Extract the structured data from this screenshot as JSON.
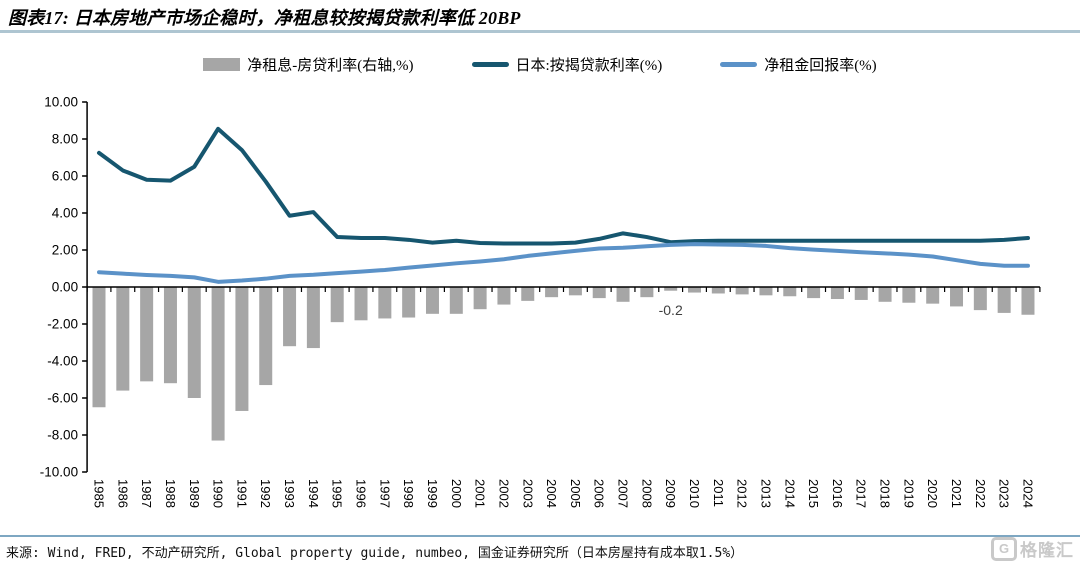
{
  "header": {
    "title": "图表17: 日本房地产市场企稳时，净租息较按揭贷款利率低 20BP"
  },
  "legend": [
    {
      "label": "净租息-房贷利率(右轴,%)",
      "type": "bar",
      "color": "#a6a6a6"
    },
    {
      "label": "日本:按揭贷款利率(%)",
      "type": "line",
      "color": "#16566f"
    },
    {
      "label": "净租金回报率(%)",
      "type": "line",
      "color": "#5b92c8"
    }
  ],
  "chart_data": {
    "type": "combo",
    "title": "",
    "xlabel": "",
    "ylabel": "",
    "ylim": [
      -10,
      10
    ],
    "grid": false,
    "legend_position": "top",
    "y_ticks": [
      "10.00",
      "8.00",
      "6.00",
      "4.00",
      "2.00",
      "0.00",
      "-2.00",
      "-4.00",
      "-6.00",
      "-8.00",
      "-10.00"
    ],
    "categories": [
      "1985",
      "1986",
      "1987",
      "1988",
      "1989",
      "1990",
      "1991",
      "1992",
      "1993",
      "1994",
      "1995",
      "1996",
      "1997",
      "1998",
      "1999",
      "2000",
      "2001",
      "2002",
      "2003",
      "2004",
      "2005",
      "2006",
      "2007",
      "2008",
      "2009",
      "2010",
      "2011",
      "2012",
      "2013",
      "2014",
      "2015",
      "2016",
      "2017",
      "2018",
      "2019",
      "2020",
      "2021",
      "2022",
      "2023",
      "2024"
    ],
    "series": [
      {
        "name": "净租息-房贷利率(右轴,%)",
        "type": "bar",
        "color": "#a6a6a6",
        "values": [
          -6.5,
          -5.6,
          -5.1,
          -5.2,
          -6.0,
          -8.3,
          -6.7,
          -5.3,
          -3.2,
          -3.3,
          -1.9,
          -1.8,
          -1.7,
          -1.65,
          -1.45,
          -1.45,
          -1.2,
          -0.95,
          -0.75,
          -0.55,
          -0.45,
          -0.6,
          -0.8,
          -0.55,
          -0.2,
          -0.3,
          -0.35,
          -0.4,
          -0.45,
          -0.5,
          -0.6,
          -0.65,
          -0.7,
          -0.8,
          -0.85,
          -0.9,
          -1.05,
          -1.25,
          -1.4,
          -1.5
        ]
      },
      {
        "name": "日本:按揭贷款利率(%)",
        "type": "line",
        "color": "#16566f",
        "values": [
          7.25,
          6.3,
          5.8,
          5.75,
          6.5,
          8.55,
          7.4,
          5.7,
          3.85,
          4.05,
          2.7,
          2.65,
          2.65,
          2.55,
          2.4,
          2.5,
          2.38,
          2.35,
          2.35,
          2.35,
          2.4,
          2.6,
          2.9,
          2.7,
          2.42,
          2.48,
          2.5,
          2.5,
          2.5,
          2.5,
          2.5,
          2.5,
          2.5,
          2.5,
          2.5,
          2.5,
          2.5,
          2.5,
          2.55,
          2.65
        ]
      },
      {
        "name": "净租金回报率(%)",
        "type": "line",
        "color": "#5b92c8",
        "values": [
          0.8,
          0.72,
          0.65,
          0.6,
          0.52,
          0.28,
          0.35,
          0.45,
          0.6,
          0.66,
          0.75,
          0.83,
          0.92,
          1.05,
          1.16,
          1.28,
          1.38,
          1.5,
          1.68,
          1.82,
          1.95,
          2.08,
          2.12,
          2.2,
          2.28,
          2.32,
          2.3,
          2.28,
          2.22,
          2.1,
          2.02,
          1.95,
          1.88,
          1.82,
          1.75,
          1.65,
          1.45,
          1.25,
          1.15,
          1.15
        ]
      }
    ],
    "annotation": {
      "text": "-0.2",
      "category": "2009"
    }
  },
  "footer": {
    "source": "来源: Wind, FRED, 不动产研究所, Global property guide, numbeo, 国金证券研究所（日本房屋持有成本取1.5%）",
    "logo_text": "格隆汇",
    "logo_letter": "G"
  }
}
